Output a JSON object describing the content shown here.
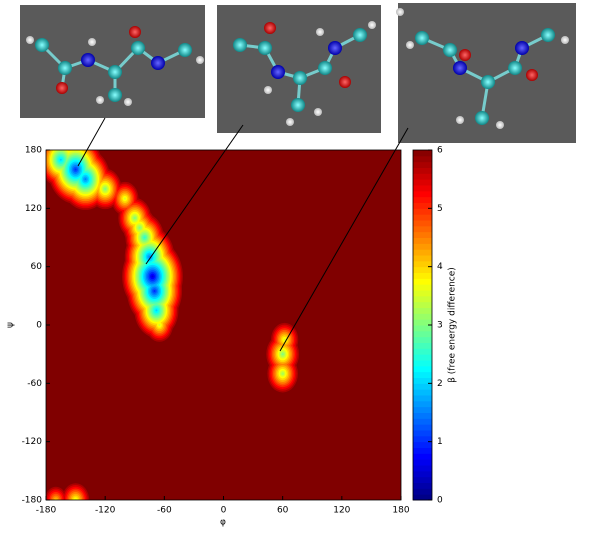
{
  "chart_data": {
    "type": "heatmap",
    "xlabel": "φ",
    "ylabel": "ψ",
    "colorbar_label": "β (free energy difference)",
    "x": [
      -150,
      -140,
      -165,
      -120,
      -100,
      -90,
      -85,
      -80,
      -75,
      -72,
      -70,
      -68,
      -65,
      -150,
      -170,
      60,
      60,
      62
    ],
    "y": [
      160,
      150,
      170,
      140,
      130,
      110,
      100,
      90,
      70,
      50,
      35,
      15,
      0,
      -180,
      -180,
      -30,
      -50,
      -15
    ],
    "values": [
      1.0,
      1.5,
      2.0,
      3.0,
      3.5,
      3.0,
      3.0,
      2.5,
      1.5,
      0.5,
      1.0,
      2.0,
      3.5,
      3.5,
      4.0,
      3.0,
      3.2,
      3.5
    ],
    "xlim": [
      -180,
      180
    ],
    "xticks": [
      -180,
      -120,
      -60,
      0,
      60,
      120,
      180
    ],
    "ylim": [
      -180,
      180
    ],
    "yticks": [
      -180,
      -120,
      -60,
      0,
      60,
      120,
      180
    ],
    "zlim": [
      0,
      6
    ],
    "zticks": [
      0,
      1,
      2,
      3,
      4,
      5,
      6
    ],
    "colormap": "jet"
  }
}
